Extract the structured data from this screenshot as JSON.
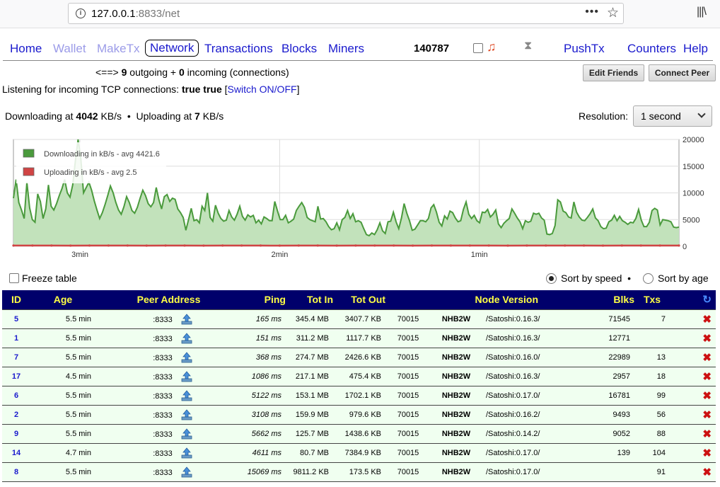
{
  "browser": {
    "url_host": "127.0.0.1",
    "url_rest": ":8833/net",
    "menu_dots": "•••"
  },
  "nav": {
    "home": "Home",
    "wallet": "Wallet",
    "maketx": "MakeTx",
    "network": "Network",
    "transactions": "Transactions",
    "blocks": "Blocks",
    "miners": "Miners",
    "block_height": "140787",
    "pushtx": "PushTx",
    "counters": "Counters",
    "help": "Help"
  },
  "connections": {
    "arrow": "<==>",
    "outgoing": "9",
    "outgoing_label": "outgoing +",
    "incoming": "0",
    "incoming_label": "incoming (connections)"
  },
  "buttons": {
    "edit_friends": "Edit Friends",
    "connect_peer": "Connect Peer"
  },
  "listening": {
    "label": "Listening for incoming TCP connections:",
    "value": "true true",
    "switch_label": "Switch ON/OFF"
  },
  "speed": {
    "down_label": "Downloading at",
    "down_value": "4042",
    "unit1": "KB/s",
    "sep": "•",
    "up_label": "Uploading at",
    "up_value": "7",
    "unit2": "KB/s"
  },
  "resolution": {
    "label": "Resolution:",
    "value": "1 second"
  },
  "chart_data": {
    "type": "area",
    "legend_placement": "top-left",
    "y_axis_side": "right",
    "ylim": [
      0,
      20000
    ],
    "yticks": [
      "0",
      "5000",
      "10000",
      "15000",
      "20000"
    ],
    "xtick_labels": [
      "3min",
      "2min",
      "1min"
    ],
    "xtick_seconds_ago": [
      180,
      120,
      60
    ],
    "x_range_seconds_ago": [
      200,
      0
    ],
    "grid": true,
    "series": [
      {
        "name": "Downloading in kB/s - avg 4421.6",
        "color": "#4a9a3c",
        "values": [
          9000,
          12500,
          8200,
          6800,
          5200,
          12000,
          7200,
          5000,
          4500,
          9800,
          8400,
          5200,
          7000,
          11500,
          7500,
          6800,
          8000,
          9500,
          10800,
          12500,
          10000,
          9200,
          11500,
          16000,
          20000,
          16500,
          10000,
          11000,
          12000,
          10500,
          8500,
          6800,
          5200,
          6300,
          7800,
          9500,
          11300,
          10000,
          8200,
          6800,
          6000,
          7400,
          9300,
          8200,
          6700,
          6200,
          7300,
          9000,
          10500,
          9500,
          8000,
          7400,
          8200,
          11000,
          8700,
          7000,
          9300,
          9700,
          8400,
          9000,
          8800,
          7000,
          6300,
          5400,
          3000,
          5000,
          7100,
          4800,
          5000,
          4400,
          7500,
          6700,
          10000,
          5400,
          4700,
          7700,
          6200,
          5200,
          4700,
          4900,
          6700,
          5500,
          4900,
          6000,
          7500,
          5600,
          4900,
          5900,
          5500,
          5800,
          4400,
          4900,
          4200,
          5500,
          5200,
          4800,
          4800,
          8400,
          6600,
          5000,
          5000,
          5800,
          4400,
          4700,
          5100,
          6700,
          7500,
          8200,
          7300,
          5400,
          5000,
          4800,
          4600,
          7500,
          5100,
          5200,
          4600,
          3700,
          3100,
          3300,
          4400,
          3100,
          5000,
          5400,
          6700,
          5200,
          6100,
          4600,
          4800,
          4500,
          3300,
          2200,
          2000,
          2500,
          2200,
          3100,
          4400,
          2900,
          2400,
          4600,
          4700,
          6400,
          4600,
          3300,
          5300,
          8000,
          6200,
          4800,
          3000,
          3200,
          4000,
          4800,
          4800,
          4600,
          5200,
          7200,
          7800,
          6400,
          4500,
          3800,
          5700,
          5100,
          6600,
          6300,
          5300,
          4600,
          4800,
          6900,
          8300,
          6000,
          5200,
          5800,
          4800,
          4400,
          6400,
          6300,
          6900,
          5500,
          6000,
          6800,
          4200,
          3500,
          4300,
          4800,
          5200,
          7000,
          6200,
          5300,
          4600,
          3300,
          4800,
          4500,
          4700,
          6200,
          6000,
          6200,
          5300,
          4900,
          2300,
          2200,
          2400,
          3900,
          8700,
          8300,
          6600,
          6300,
          5500,
          5300,
          8300,
          6400,
          5500,
          4900,
          4800,
          5400,
          6100,
          7000,
          5300,
          4800,
          3700,
          3300,
          3400,
          4600,
          4900,
          5800,
          4800,
          5600,
          4800,
          4500,
          4100,
          4500,
          4400,
          5200,
          6900,
          4900,
          3700,
          3700,
          4500,
          6700,
          7100,
          6800,
          4000,
          5000,
          4900,
          4800,
          4600,
          3600,
          3500,
          3600
        ]
      },
      {
        "name": "Uploading in kB/s - avg 2.5",
        "color": "#d04444",
        "values": [
          10,
          8,
          12,
          6,
          9,
          15,
          7,
          5,
          8,
          10,
          6,
          9,
          11,
          7,
          5,
          8,
          10,
          6,
          9,
          7,
          8,
          6,
          10,
          9,
          7,
          8,
          6,
          10,
          9,
          8,
          7,
          6,
          10,
          8,
          9,
          7
        ]
      }
    ]
  },
  "freeze_label": "Freeze table",
  "sort": {
    "speed": "Sort by speed",
    "sep": "•",
    "age": "Sort by age"
  },
  "table": {
    "headers": [
      "ID",
      "Age",
      "Peer Address",
      "Ping",
      "Tot In",
      "Tot Out",
      "Node Version",
      "Blks",
      "Txs"
    ],
    "rows": [
      {
        "id": "5",
        "age": "5.5 min",
        "addr": ":8333",
        "ping": "165 ms",
        "tot_in": "345.4 MB",
        "tot_out": "3407.7 KB",
        "ver": "70015",
        "svc": "NHB2W",
        "agent": "/Satoshi:0.16.3/",
        "blks": "71545",
        "txs": "7"
      },
      {
        "id": "1",
        "age": "5.5 min",
        "addr": ":8333",
        "ping": "151 ms",
        "tot_in": "311.2 MB",
        "tot_out": "1117.7 KB",
        "ver": "70015",
        "svc": "NHB2W",
        "agent": "/Satoshi:0.16.3/",
        "blks": "12771",
        "txs": ""
      },
      {
        "id": "7",
        "age": "5.5 min",
        "addr": ":8333",
        "ping": "368 ms",
        "tot_in": "274.7 MB",
        "tot_out": "2426.6 KB",
        "ver": "70015",
        "svc": "NHB2W",
        "agent": "/Satoshi:0.16.0/",
        "blks": "22989",
        "txs": "13"
      },
      {
        "id": "17",
        "age": "4.5 min",
        "addr": ":8333",
        "ping": "1086 ms",
        "tot_in": "217.1 MB",
        "tot_out": "475.4 KB",
        "ver": "70015",
        "svc": "NHB2W",
        "agent": "/Satoshi:0.16.3/",
        "blks": "2957",
        "txs": "18"
      },
      {
        "id": "6",
        "age": "5.5 min",
        "addr": ":8333",
        "ping": "5122 ms",
        "tot_in": "153.1 MB",
        "tot_out": "1702.1 KB",
        "ver": "70015",
        "svc": "NHB2W",
        "agent": "/Satoshi:0.17.0/",
        "blks": "16781",
        "txs": "99"
      },
      {
        "id": "2",
        "age": "5.5 min",
        "addr": ":8333",
        "ping": "3108 ms",
        "tot_in": "159.9 MB",
        "tot_out": "979.6 KB",
        "ver": "70015",
        "svc": "NHB2W",
        "agent": "/Satoshi:0.16.2/",
        "blks": "9493",
        "txs": "56"
      },
      {
        "id": "9",
        "age": "5.5 min",
        "addr": ":8333",
        "ping": "5662 ms",
        "tot_in": "125.7 MB",
        "tot_out": "1438.6 KB",
        "ver": "70015",
        "svc": "NHB2W",
        "agent": "/Satoshi:0.14.2/",
        "blks": "9052",
        "txs": "88"
      },
      {
        "id": "14",
        "age": "4.7 min",
        "addr": ":8333",
        "ping": "4611 ms",
        "tot_in": "80.7 MB",
        "tot_out": "7384.9 KB",
        "ver": "70015",
        "svc": "NHB2W",
        "agent": "/Satoshi:0.17.0/",
        "blks": "139",
        "txs": "104"
      },
      {
        "id": "8",
        "age": "5.5 min",
        "addr": ":8333",
        "ping": "15069 ms",
        "tot_in": "9811.2 KB",
        "tot_out": "173.5 KB",
        "ver": "70015",
        "svc": "NHB2W",
        "agent": "/Satoshi:0.17.0/",
        "blks": "",
        "txs": "91"
      }
    ]
  },
  "icons": {
    "upload": "upload-arrow-icon",
    "delete": "delete-x-icon",
    "refresh": "refresh-icon",
    "music": "music-note-icon",
    "hourglass": "hourglass-icon"
  }
}
